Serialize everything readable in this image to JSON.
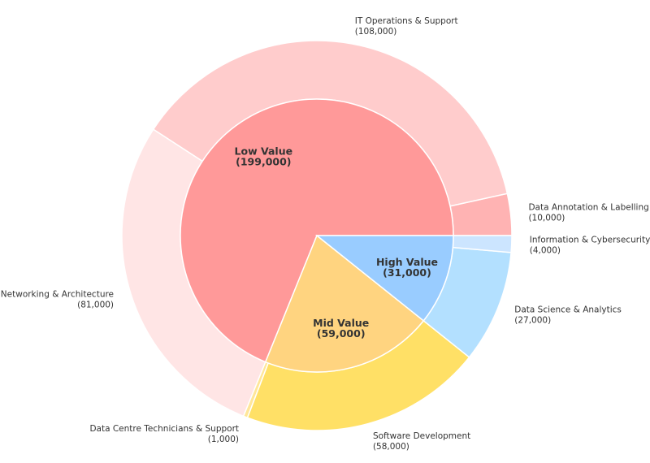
{
  "chart_data": {
    "type": "pie",
    "subtype": "nested-donut",
    "title": "",
    "center": [
      390,
      290
    ],
    "inner_radius": 168,
    "outer_radius": 240,
    "start_angle_deg": 0,
    "direction": "counterclockwise",
    "inner_ring": [
      {
        "label": "Low Value",
        "value": 199000,
        "display": "(199,000)",
        "color": "#FF9999"
      },
      {
        "label": "Mid Value",
        "value": 59000,
        "display": "(59,000)",
        "color": "#FFD480"
      },
      {
        "label": "High Value",
        "value": 31000,
        "display": "(31,000)",
        "color": "#99CCFF"
      }
    ],
    "outer_ring": [
      {
        "label": "Data Annotation & Labelling",
        "value": 10000,
        "display": "(10,000)",
        "group": "Low Value",
        "color": "#FFB3B3"
      },
      {
        "label": "IT Operations & Support",
        "value": 108000,
        "display": "(108,000)",
        "group": "Low Value",
        "color": "#FFCCCC"
      },
      {
        "label": "Networking & Architecture",
        "value": 81000,
        "display": "(81,000)",
        "group": "Low Value",
        "color": "#FFE5E5"
      },
      {
        "label": "Data Centre Technicians & Support",
        "value": 1000,
        "display": "(1,000)",
        "group": "Mid Value",
        "color": "#FFE699"
      },
      {
        "label": "Software Development",
        "value": 58000,
        "display": "(58,000)",
        "group": "Mid Value",
        "color": "#FFE066"
      },
      {
        "label": "Data Science & Analytics",
        "value": 27000,
        "display": "(27,000)",
        "group": "High Value",
        "color": "#B3E0FF"
      },
      {
        "label": "Information & Cybersecurity",
        "value": 4000,
        "display": "(4,000)",
        "group": "High Value",
        "color": "#CCE5FF"
      }
    ]
  }
}
